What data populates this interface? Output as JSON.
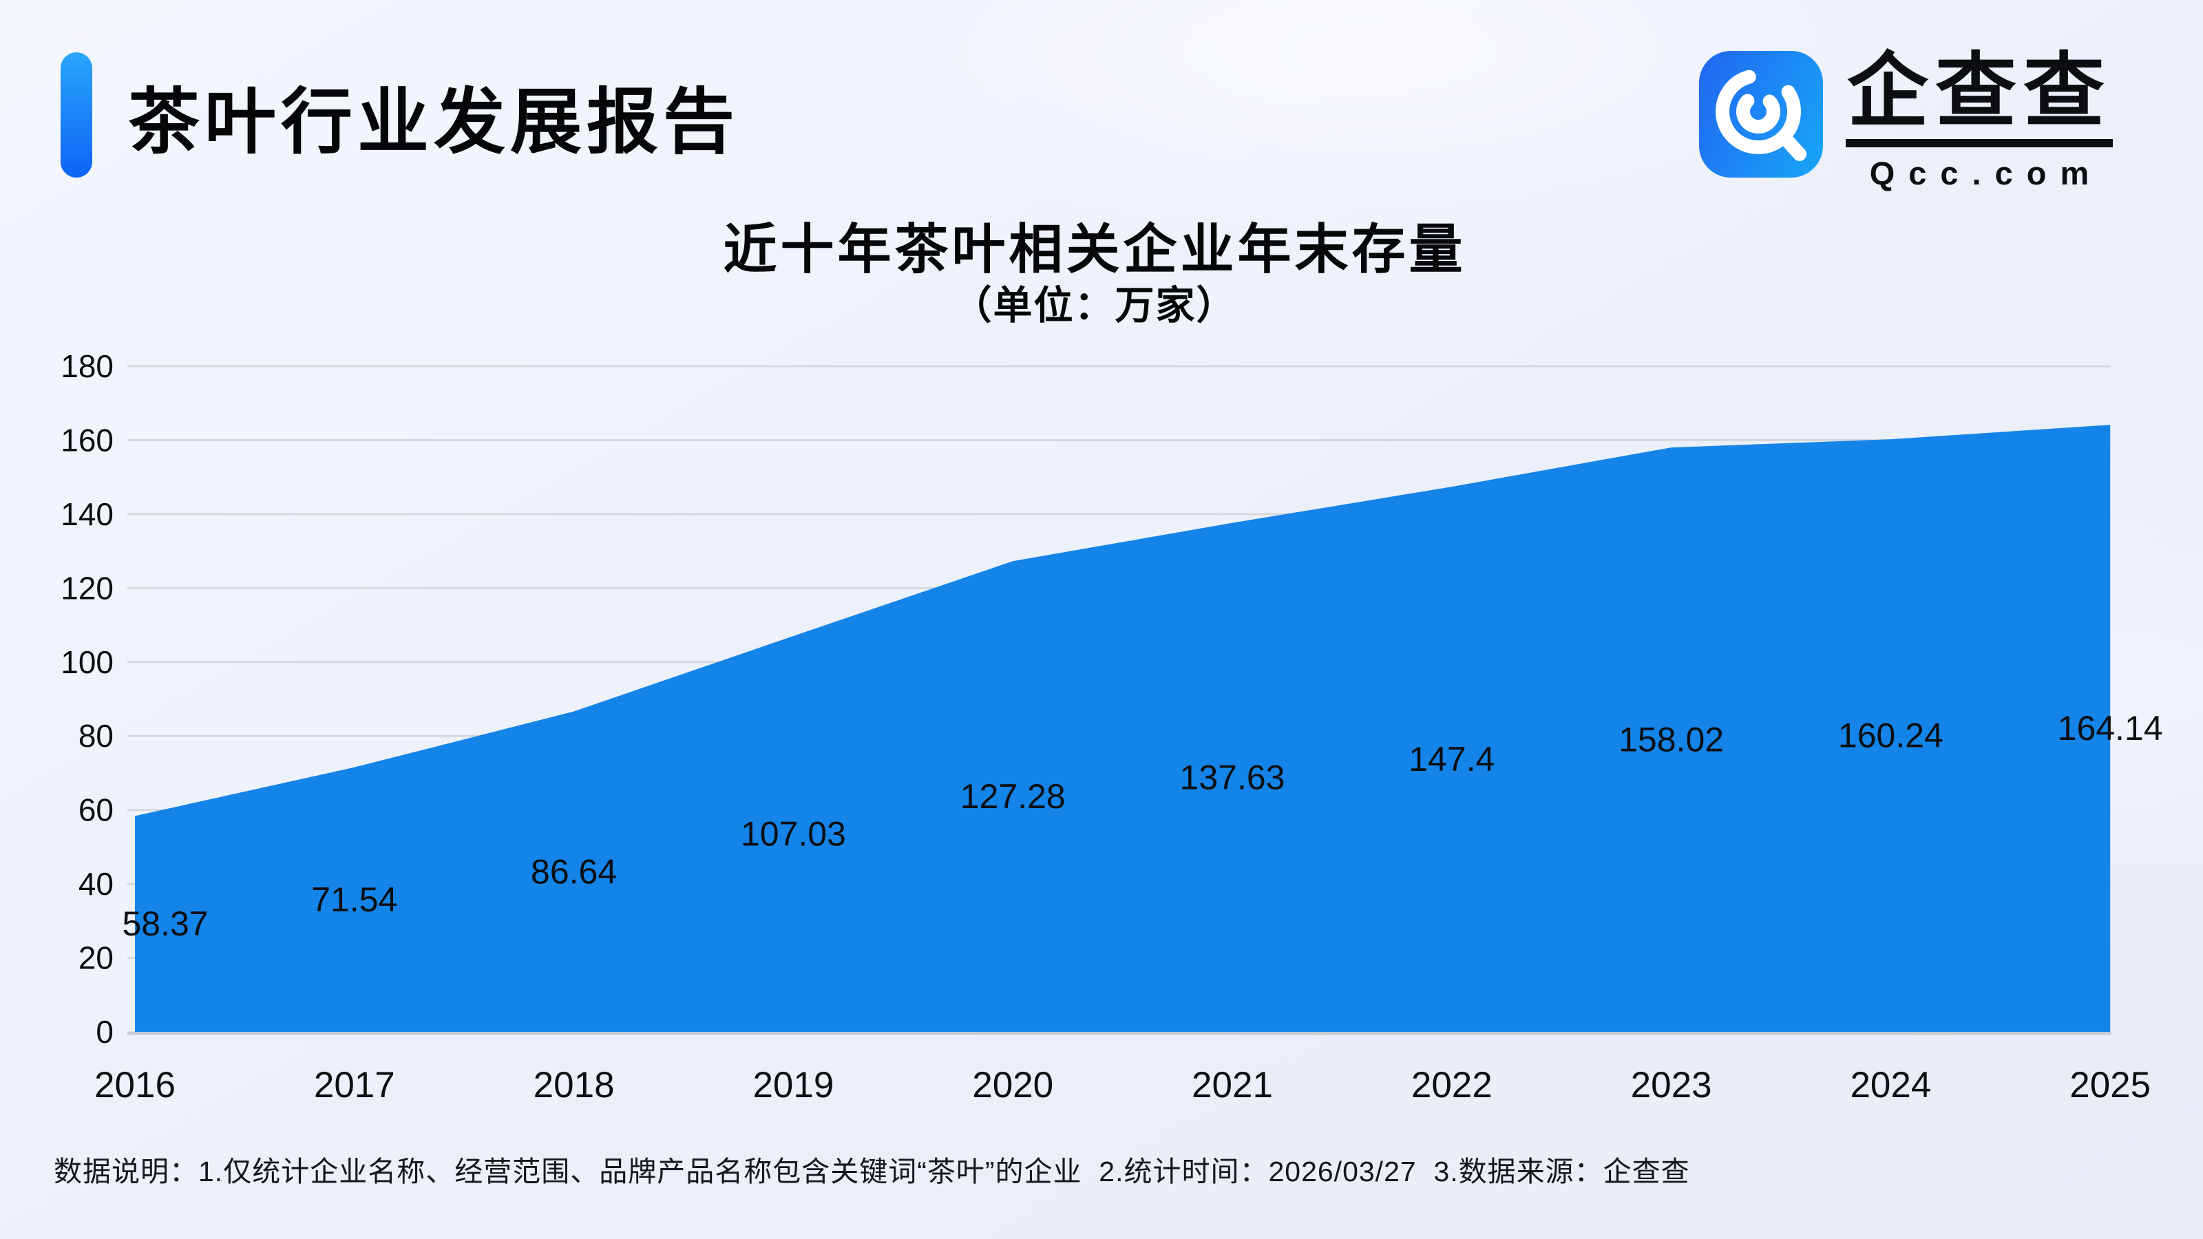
{
  "header": {
    "title": "茶叶行业发展报告"
  },
  "logo": {
    "icon": "qcc-magnifier-icon",
    "brand_cn": "企查查",
    "brand_en": "Qcc.com"
  },
  "chart": {
    "title": "近十年茶叶相关企业年末存量",
    "subtitle": "（单位：万家）"
  },
  "chart_data": {
    "type": "area",
    "title": "近十年茶叶相关企业年末存量",
    "unit_label": "（单位：万家）",
    "categories": [
      "2016",
      "2017",
      "2018",
      "2019",
      "2020",
      "2021",
      "2022",
      "2023",
      "2024",
      "2025"
    ],
    "values": [
      58.37,
      71.54,
      86.64,
      107.03,
      127.28,
      137.63,
      147.4,
      158.02,
      160.24,
      164.14
    ],
    "xlabel": "",
    "ylabel": "",
    "ylim": [
      0,
      180
    ],
    "yticks": [
      0,
      20,
      40,
      60,
      80,
      100,
      120,
      140,
      160,
      180
    ],
    "grid": true,
    "legend": "none",
    "colors": {
      "area": "#1484e8",
      "grid": "#d7d9dd",
      "baseline": "#c7cad1",
      "label": "#0c0e11"
    }
  },
  "colors": {
    "text": "#0c0e11",
    "accent_top": "#2aa6fb",
    "accent_bottom": "#0e63f4",
    "logo_left": "#2166f1",
    "logo_right": "#18a7f7",
    "brand_blue": "#1484e8"
  },
  "footer": {
    "note": "数据说明：1.仅统计企业名称、经营范围、品牌产品名称包含关键词“茶叶”的企业  2.统计时间：2026/03/27  3.数据来源：企查查"
  }
}
